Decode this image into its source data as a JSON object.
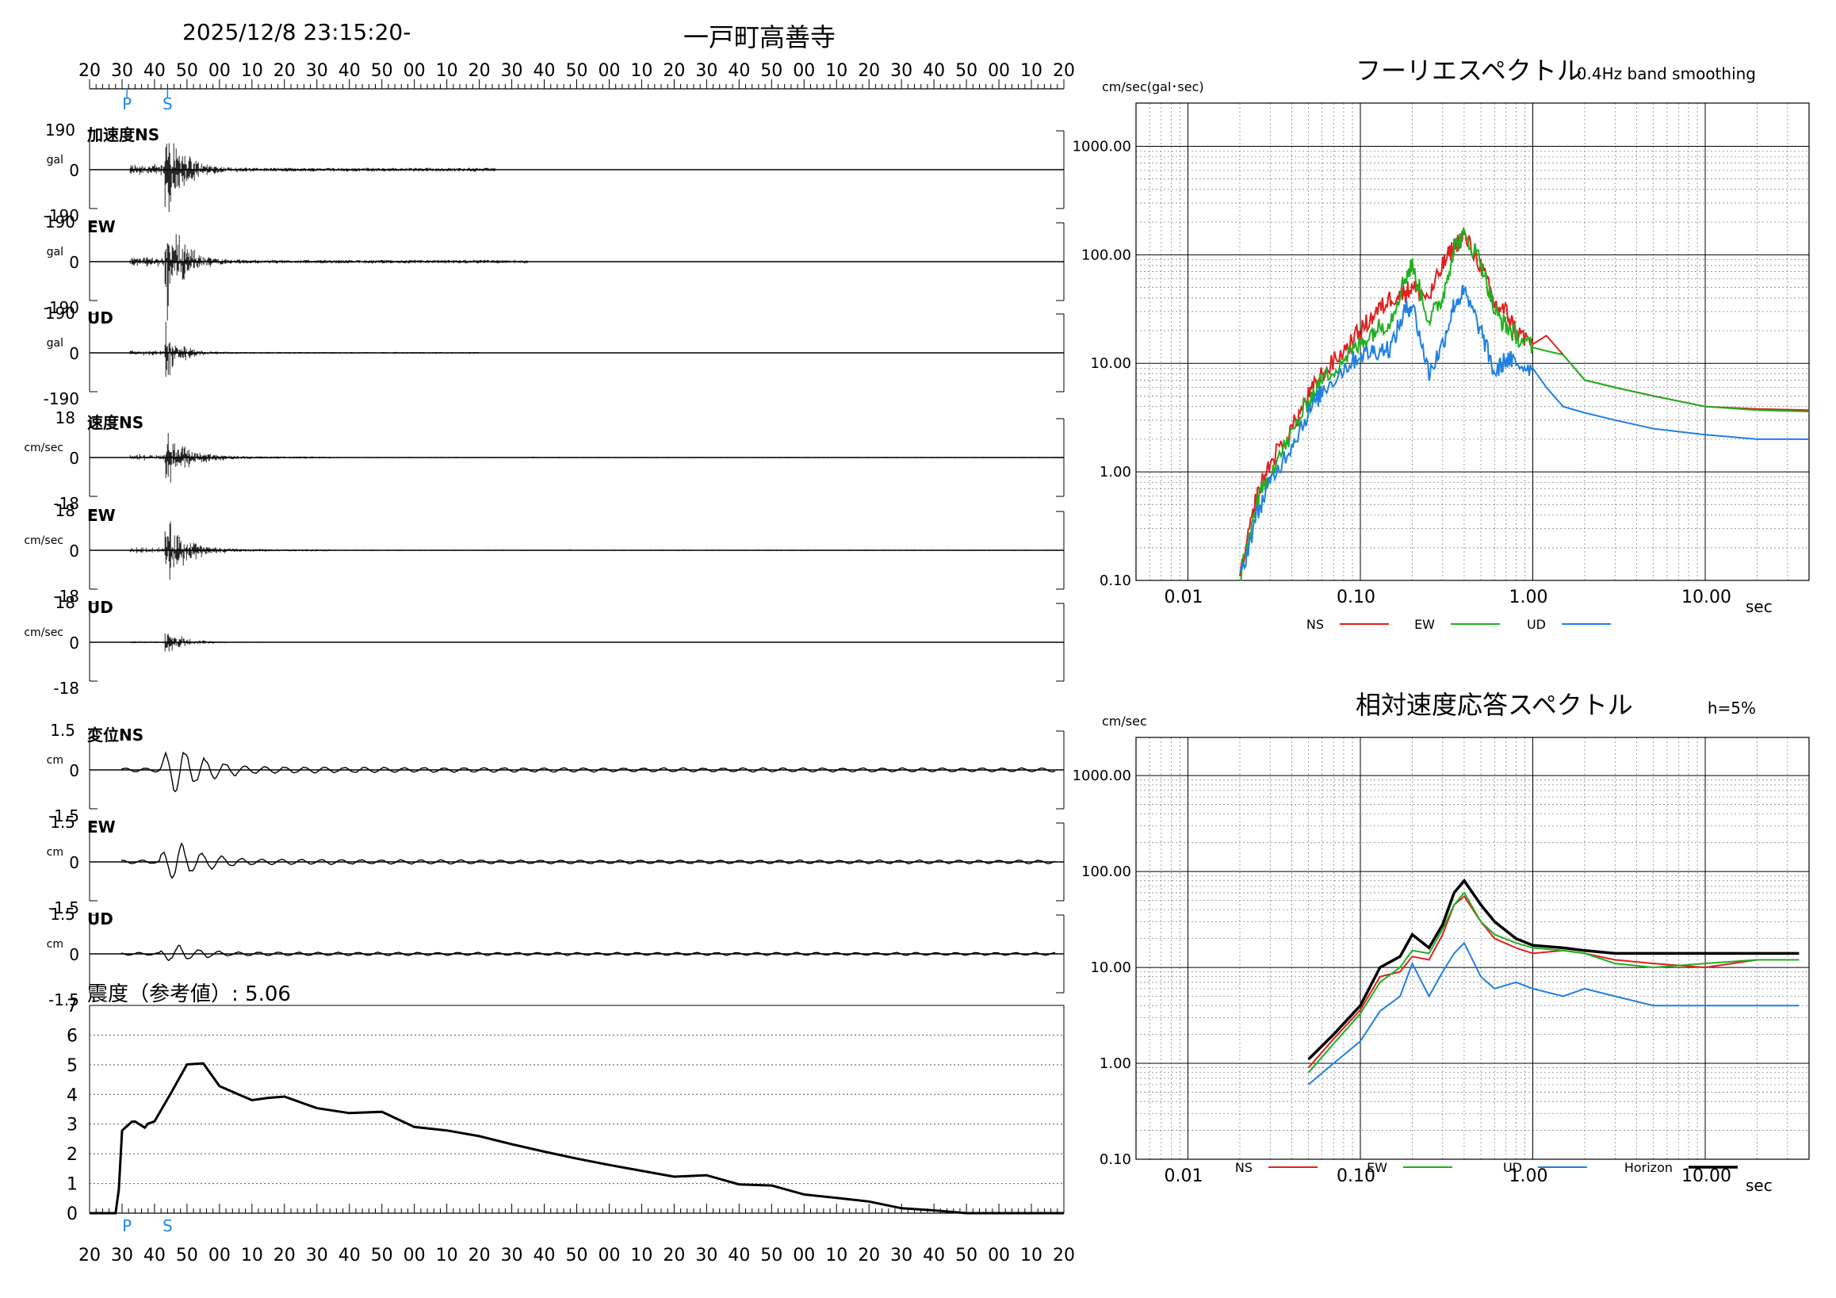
{
  "header": {
    "datetime": "2025/12/8 23:15:20-",
    "station": "一戸町高善寺"
  },
  "waveform": {
    "time_ticks": [
      "20",
      "30",
      "40",
      "50",
      "00",
      "10",
      "20",
      "30",
      "40",
      "50",
      "00",
      "10",
      "20",
      "30",
      "40",
      "50",
      "00",
      "10",
      "20",
      "30",
      "40",
      "50",
      "00",
      "10",
      "20",
      "30",
      "40",
      "50",
      "00",
      "10",
      "20"
    ],
    "p_marker": "P",
    "s_marker": "S",
    "p_tick_index": 1.15,
    "s_tick_index": 2.4,
    "marker_color": "#1e88e5",
    "panels": [
      {
        "label": "加速度NS",
        "unit": "gal",
        "top": "190",
        "zero": "0",
        "bottom": "-190",
        "amp": 1.0,
        "decay": 0.055,
        "maxTick": 12.5,
        "kind": "acc"
      },
      {
        "label": "EW",
        "unit": "gal",
        "top": "190",
        "zero": "0",
        "bottom": "-190",
        "amp": 0.9,
        "decay": 0.05,
        "maxTick": 13.5,
        "kind": "acc"
      },
      {
        "label": "UD",
        "unit": "gal",
        "top": "190",
        "zero": "0",
        "bottom": "-190",
        "amp": 0.45,
        "decay": 0.06,
        "maxTick": 12,
        "kind": "acc"
      },
      {
        "label": "速度NS",
        "unit": "cm/sec",
        "top": "18",
        "zero": "0",
        "bottom": "-18",
        "amp": 0.55,
        "decay": 0.04,
        "maxTick": 30,
        "kind": "vel"
      },
      {
        "label": "EW",
        "unit": "cm/sec",
        "top": "18",
        "zero": "0",
        "bottom": "-18",
        "amp": 0.55,
        "decay": 0.04,
        "maxTick": 30,
        "kind": "vel"
      },
      {
        "label": "UD",
        "unit": "cm/sec",
        "top": "18",
        "zero": "0",
        "bottom": "-18",
        "amp": 0.22,
        "decay": 0.045,
        "maxTick": 30,
        "kind": "vel"
      },
      {
        "label": "変位NS",
        "unit": "cm",
        "top": "1.5",
        "zero": "0",
        "bottom": "-1.5",
        "amp": 0.75,
        "decay": 0.02,
        "maxTick": 30,
        "kind": "disp"
      },
      {
        "label": "EW",
        "unit": "cm",
        "top": "1.5",
        "zero": "0",
        "bottom": "-1.5",
        "amp": 0.55,
        "decay": 0.02,
        "maxTick": 30,
        "kind": "disp"
      },
      {
        "label": "UD",
        "unit": "cm",
        "top": "1.5",
        "zero": "0",
        "bottom": "-1.5",
        "amp": 0.25,
        "decay": 0.02,
        "maxTick": 30,
        "kind": "disp"
      }
    ]
  },
  "intensity": {
    "title": "震度（参考値）: 5.06",
    "y_ticks": [
      "0",
      "1",
      "2",
      "3",
      "4",
      "5",
      "6",
      "7"
    ],
    "ylim": [
      0,
      7
    ]
  },
  "fourier": {
    "title": "フーリエスペクトル",
    "note": "0.4Hz band smoothing",
    "yunit": "cm/sec(gal･sec)",
    "xunit": "sec",
    "y_ticks": [
      "0.10",
      "1.00",
      "10.00",
      "100.00",
      "1000.00"
    ],
    "x_ticks": [
      "0.01",
      "0.10",
      "1.00",
      "10.00"
    ],
    "legend": [
      {
        "name": "NS",
        "color": "#e02020"
      },
      {
        "name": "EW",
        "color": "#20b020"
      },
      {
        "name": "UD",
        "color": "#2080e0"
      }
    ]
  },
  "response": {
    "title": "相対速度応答スペクトル",
    "note": "h=5%",
    "yunit": "cm/sec",
    "xunit": "sec",
    "y_ticks": [
      "0.10",
      "1.00",
      "10.00",
      "100.00",
      "1000.00"
    ],
    "x_ticks": [
      "0.01",
      "0.10",
      "1.00",
      "10.00"
    ],
    "legend": [
      {
        "name": "NS",
        "color": "#e02020"
      },
      {
        "name": "EW",
        "color": "#20b020"
      },
      {
        "name": "UD",
        "color": "#2080e0"
      },
      {
        "name": "Horizon",
        "color": "#000000"
      }
    ]
  },
  "chart_data": [
    {
      "type": "line",
      "title": "震度（参考値）: 5.06",
      "ylim": [
        0,
        7
      ],
      "x_unit": "time (s, 10 s ticks from 23:15:20)",
      "series": [
        {
          "x": [
            0,
            5,
            8,
            9,
            10,
            13,
            14,
            15,
            17,
            18,
            20,
            25,
            30,
            35,
            40,
            45,
            50,
            55,
            60,
            70,
            80,
            90,
            100,
            110,
            120,
            130,
            140,
            150,
            160,
            170,
            180,
            190,
            200,
            210,
            220,
            230,
            240,
            250,
            260,
            270,
            300
          ],
          "y": [
            0,
            0,
            0,
            0.8,
            2.8,
            3.1,
            3.1,
            3.0,
            2.9,
            3.0,
            3.1,
            4.0,
            5.0,
            5.05,
            4.3,
            4.0,
            3.8,
            3.85,
            3.9,
            3.5,
            3.4,
            3.45,
            2.9,
            2.8,
            2.6,
            2.3,
            2.1,
            1.8,
            1.6,
            1.4,
            1.2,
            1.3,
            1.0,
            0.9,
            0.6,
            0.5,
            0.4,
            0.2,
            0.1,
            0.0,
            0.0
          ]
        }
      ]
    },
    {
      "type": "line",
      "title": "フーリエスペクトル",
      "xlabel": "sec",
      "ylabel": "cm/sec(gal･sec)",
      "x_scale": "log",
      "y_scale": "log",
      "xlim": [
        0.005,
        40
      ],
      "ylim": [
        0.1,
        2500
      ],
      "series": [
        {
          "name": "NS",
          "x": [
            0.02,
            0.025,
            0.03,
            0.04,
            0.05,
            0.06,
            0.08,
            0.1,
            0.12,
            0.15,
            0.18,
            0.2,
            0.25,
            0.3,
            0.35,
            0.4,
            0.5,
            0.6,
            0.7,
            0.8,
            1.0,
            1.2,
            1.5,
            2,
            3,
            5,
            10,
            20,
            40
          ],
          "y": [
            0.1,
            0.6,
            1.2,
            2.5,
            5,
            8,
            13,
            20,
            28,
            40,
            45,
            50,
            40,
            80,
            120,
            150,
            80,
            35,
            30,
            20,
            15,
            18,
            12,
            7,
            6,
            5,
            4,
            3.8,
            3.7
          ]
        },
        {
          "name": "EW",
          "x": [
            0.02,
            0.025,
            0.03,
            0.04,
            0.05,
            0.06,
            0.08,
            0.1,
            0.12,
            0.15,
            0.18,
            0.2,
            0.25,
            0.3,
            0.35,
            0.4,
            0.5,
            0.6,
            0.7,
            0.8,
            1.0,
            1.2,
            1.5,
            2,
            3,
            5,
            10,
            20,
            40
          ],
          "y": [
            0.1,
            0.5,
            1.0,
            2.2,
            4.5,
            7,
            11,
            15,
            20,
            25,
            60,
            80,
            25,
            40,
            120,
            150,
            90,
            30,
            22,
            18,
            14,
            13,
            12,
            7,
            6,
            5,
            4,
            3.7,
            3.6
          ]
        },
        {
          "name": "UD",
          "x": [
            0.02,
            0.025,
            0.03,
            0.04,
            0.05,
            0.06,
            0.08,
            0.1,
            0.12,
            0.15,
            0.18,
            0.2,
            0.25,
            0.3,
            0.35,
            0.4,
            0.5,
            0.6,
            0.7,
            0.8,
            1.0,
            1.2,
            1.5,
            2,
            3,
            5,
            10,
            20,
            40
          ],
          "y": [
            0.1,
            0.4,
            0.8,
            1.8,
            3.5,
            5.5,
            9,
            12,
            13,
            14,
            30,
            35,
            8,
            15,
            35,
            45,
            20,
            8,
            11,
            10,
            9,
            6,
            4,
            3.5,
            3,
            2.5,
            2.2,
            2.0,
            2.0
          ]
        }
      ]
    },
    {
      "type": "line",
      "title": "相対速度応答スペクトル",
      "xlabel": "sec",
      "ylabel": "cm/sec",
      "x_scale": "log",
      "y_scale": "log",
      "xlim": [
        0.005,
        40
      ],
      "ylim": [
        0.1,
        2500
      ],
      "series": [
        {
          "name": "NS",
          "x": [
            0.05,
            0.07,
            0.1,
            0.13,
            0.17,
            0.2,
            0.25,
            0.3,
            0.35,
            0.4,
            0.5,
            0.6,
            0.8,
            1.0,
            1.5,
            2,
            3,
            5,
            10,
            20,
            35
          ],
          "y": [
            0.9,
            1.8,
            3.6,
            8,
            9,
            13,
            12,
            22,
            45,
            55,
            30,
            20,
            16,
            14,
            15,
            14,
            12,
            11,
            10,
            12,
            12
          ]
        },
        {
          "name": "EW",
          "x": [
            0.05,
            0.07,
            0.1,
            0.13,
            0.17,
            0.2,
            0.25,
            0.3,
            0.35,
            0.4,
            0.5,
            0.6,
            0.8,
            1.0,
            1.5,
            2,
            3,
            5,
            10,
            20,
            35
          ],
          "y": [
            0.8,
            1.6,
            3.3,
            7,
            10,
            15,
            14,
            25,
            45,
            60,
            30,
            22,
            18,
            16,
            15,
            14,
            11,
            10,
            11,
            12,
            12
          ]
        },
        {
          "name": "UD",
          "x": [
            0.05,
            0.07,
            0.1,
            0.13,
            0.17,
            0.2,
            0.25,
            0.3,
            0.35,
            0.4,
            0.5,
            0.6,
            0.8,
            1.0,
            1.5,
            2,
            3,
            5,
            10,
            20,
            35
          ],
          "y": [
            0.6,
            1.0,
            1.7,
            3.5,
            5,
            11,
            5,
            9,
            14,
            18,
            8,
            6,
            7,
            6,
            5,
            6,
            5,
            4,
            4,
            4,
            4
          ]
        },
        {
          "name": "Horizon",
          "x": [
            0.05,
            0.07,
            0.1,
            0.13,
            0.17,
            0.2,
            0.25,
            0.3,
            0.35,
            0.4,
            0.5,
            0.6,
            0.8,
            1.0,
            1.5,
            2,
            3,
            5,
            10,
            20,
            35
          ],
          "y": [
            1.1,
            2.0,
            4.0,
            10,
            13,
            22,
            16,
            28,
            60,
            80,
            45,
            30,
            20,
            17,
            16,
            15,
            14,
            14,
            14,
            14,
            14
          ]
        }
      ]
    }
  ]
}
